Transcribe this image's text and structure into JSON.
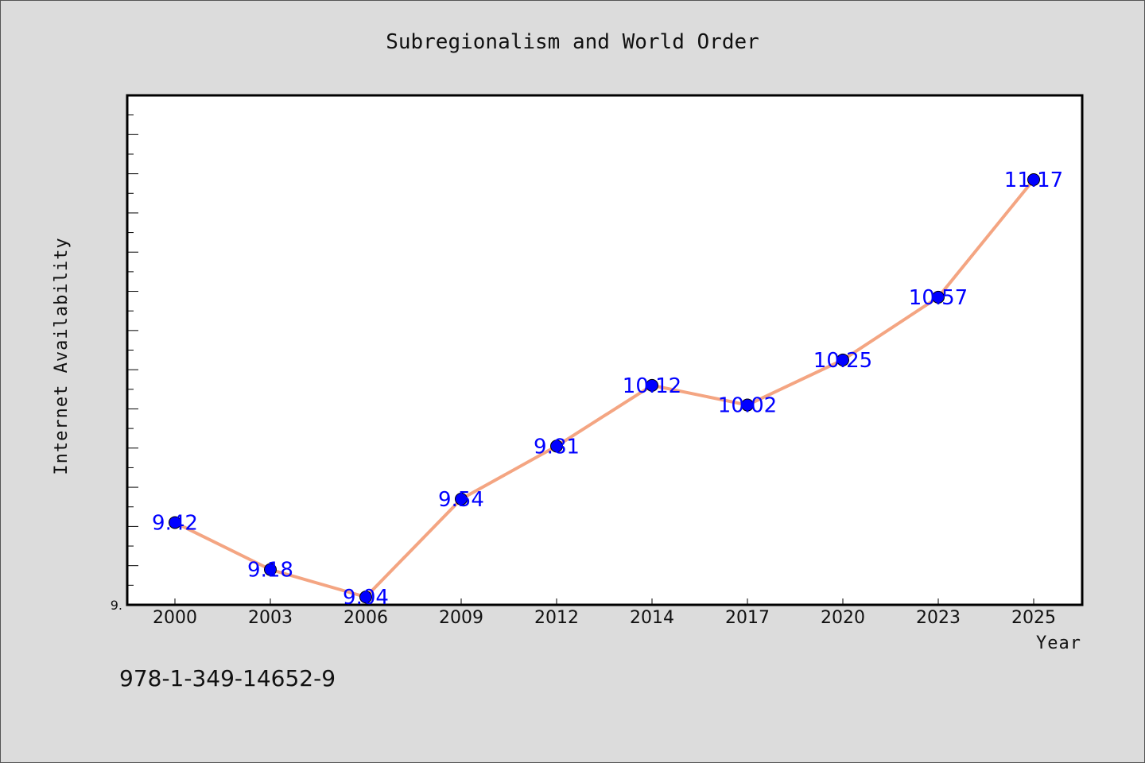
{
  "colors": {
    "background": "#dcdcdc",
    "plot_background": "#ffffff",
    "line": "#f4a582",
    "marker": "#0000ff",
    "data_label": "#0000ff"
  },
  "footer": {
    "isbn": "978-1-349-14652-9"
  },
  "chart_data": {
    "type": "line",
    "title": "Subregionalism and World Order",
    "xlabel": "Year",
    "ylabel": "Internet Availability",
    "categories": [
      "2000",
      "2003",
      "2006",
      "2009",
      "2012",
      "2014",
      "2017",
      "2020",
      "2023",
      "2025"
    ],
    "series": [
      {
        "values": [
          9.42,
          9.18,
          9.04,
          9.54,
          9.81,
          10.12,
          10.02,
          10.25,
          10.57,
          11.17
        ]
      }
    ],
    "data_labels": [
      "9.42",
      "9.18",
      "9.04",
      "9.54",
      "9.81",
      "10.12",
      "10.02",
      "10.25",
      "10.57",
      "11.17"
    ],
    "ylim": [
      9.0,
      11.6
    ],
    "y_minor_tick_step": 0.1,
    "y_tick_labels": [
      {
        "value": 9.0,
        "label": "9."
      }
    ],
    "grid": false,
    "legend": "none"
  }
}
